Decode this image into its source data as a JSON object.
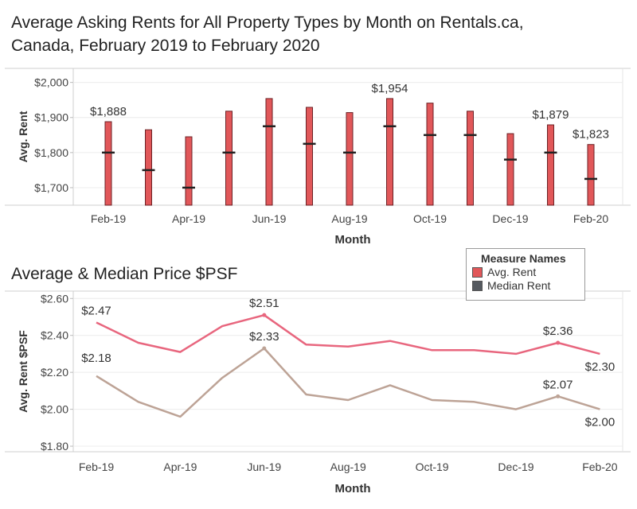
{
  "chart_data": [
    {
      "type": "bar",
      "title": "Average Asking Rents for All Property Types by Month on Rentals.ca, Canada, February 2019 to February 2020",
      "title_line1": "Average Asking Rents for All Property Types by Month on Rentals.ca,",
      "title_line2": "Canada, February 2019 to February 2020",
      "xlabel": "Month",
      "ylabel": "Avg. Rent",
      "categories": [
        "Feb-19",
        "Mar-19",
        "Apr-19",
        "May-19",
        "Jun-19",
        "Jul-19",
        "Aug-19",
        "Sep-19",
        "Oct-19",
        "Nov-19",
        "Dec-19",
        "Jan-20",
        "Feb-20"
      ],
      "x_tick_labels": [
        "Feb-19",
        "Apr-19",
        "Jun-19",
        "Aug-19",
        "Oct-19",
        "Dec-19",
        "Feb-20"
      ],
      "series": [
        {
          "name": "Avg. Rent",
          "values": [
            1888,
            1865,
            1845,
            1918,
            1954,
            1929,
            1914,
            1954,
            1941,
            1918,
            1854,
            1879,
            1823
          ]
        },
        {
          "name": "Median Rent",
          "values": [
            1800,
            1750,
            1700,
            1800,
            1875,
            1825,
            1800,
            1875,
            1850,
            1850,
            1780,
            1800,
            1725
          ]
        }
      ],
      "data_labels": [
        {
          "index": 0,
          "text": "$1,888"
        },
        {
          "index": 7,
          "text": "$1,954"
        },
        {
          "index": 11,
          "text": "$1,879"
        },
        {
          "index": 12,
          "text": "$1,823"
        }
      ],
      "yticks": [
        {
          "value": 1700,
          "label": "$1,700"
        },
        {
          "value": 1800,
          "label": "$1,800"
        },
        {
          "value": 1900,
          "label": "$1,900"
        },
        {
          "value": 2000,
          "label": "$2,000"
        }
      ],
      "ylim": [
        1650,
        2040
      ],
      "colors": {
        "avg": "#e15759",
        "median": "#222222"
      }
    },
    {
      "type": "line",
      "title": "Average & Median Price $PSF",
      "xlabel": "Month",
      "ylabel": "Avg. Rent $PSF",
      "categories": [
        "Feb-19",
        "Mar-19",
        "Apr-19",
        "May-19",
        "Jun-19",
        "Jul-19",
        "Aug-19",
        "Sep-19",
        "Oct-19",
        "Nov-19",
        "Dec-19",
        "Jan-20",
        "Feb-20"
      ],
      "x_tick_labels": [
        "Feb-19",
        "Apr-19",
        "Jun-19",
        "Aug-19",
        "Oct-19",
        "Dec-19",
        "Feb-20"
      ],
      "series": [
        {
          "name": "Avg. Rent",
          "values": [
            2.47,
            2.36,
            2.31,
            2.45,
            2.51,
            2.35,
            2.34,
            2.37,
            2.32,
            2.32,
            2.3,
            2.36,
            2.3
          ]
        },
        {
          "name": "Median Rent",
          "values": [
            2.18,
            2.04,
            1.96,
            2.17,
            2.33,
            2.08,
            2.05,
            2.13,
            2.05,
            2.04,
            2.0,
            2.07,
            2.0
          ]
        }
      ],
      "data_labels": [
        {
          "series": 0,
          "index": 0,
          "text": "$2.47"
        },
        {
          "series": 0,
          "index": 4,
          "text": "$2.51"
        },
        {
          "series": 0,
          "index": 11,
          "text": "$2.36"
        },
        {
          "series": 0,
          "index": 12,
          "text": "$2.30"
        },
        {
          "series": 1,
          "index": 0,
          "text": "$2.18"
        },
        {
          "series": 1,
          "index": 4,
          "text": "$2.33"
        },
        {
          "series": 1,
          "index": 11,
          "text": "$2.07"
        },
        {
          "series": 1,
          "index": 12,
          "text": "$2.00"
        }
      ],
      "yticks": [
        {
          "value": 1.8,
          "label": "$1.80"
        },
        {
          "value": 2.0,
          "label": "$2.00"
        },
        {
          "value": 2.2,
          "label": "$2.20"
        },
        {
          "value": 2.4,
          "label": "$2.40"
        },
        {
          "value": 2.6,
          "label": "$2.60"
        }
      ],
      "ylim": [
        1.77,
        2.64
      ],
      "colors": {
        "avg": "#e8667e",
        "median": "#bda396"
      }
    }
  ],
  "legend": {
    "title": "Measure Names",
    "items": [
      {
        "label": "Avg. Rent",
        "color": "#e15759"
      },
      {
        "label": "Median Rent",
        "color": "#555a60"
      }
    ]
  }
}
